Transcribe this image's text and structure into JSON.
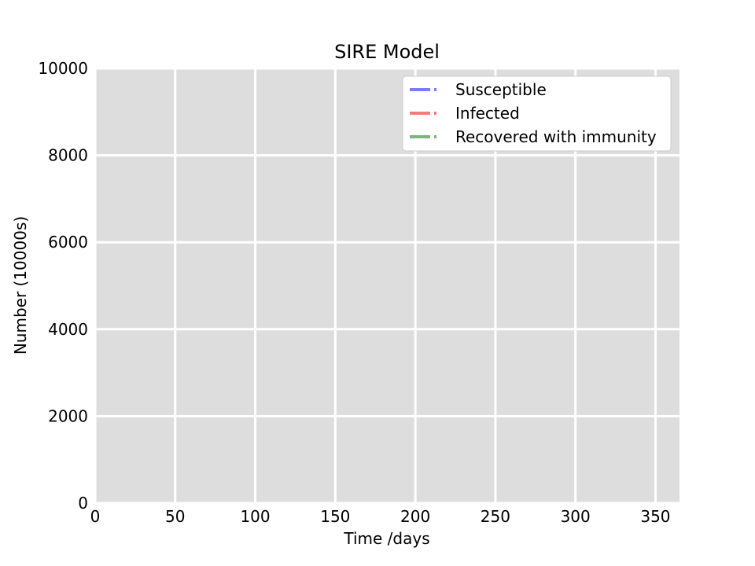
{
  "chart_data": {
    "type": "line",
    "title": "SIRE Model",
    "xlabel": "Time /days",
    "ylabel": "Number (10000s)",
    "xlim": [
      0,
      365
    ],
    "ylim": [
      0,
      10000
    ],
    "x_ticks": [
      0,
      50,
      100,
      150,
      200,
      250,
      300,
      350
    ],
    "y_ticks": [
      0,
      2000,
      4000,
      6000,
      8000,
      10000
    ],
    "grid": true,
    "legend_position": "top-right",
    "background_color": "#dddddd",
    "grid_color": "#ffffff",
    "series": [
      {
        "name": "Susceptible",
        "color": "#7b7bf5",
        "style": "dash-dot",
        "x": [],
        "y": []
      },
      {
        "name": "Infected",
        "color": "#f57b7b",
        "style": "dash-dot",
        "x": [],
        "y": []
      },
      {
        "name": "Recovered with immunity",
        "color": "#7bb57b",
        "style": "dash-dot",
        "x": [],
        "y": []
      }
    ]
  }
}
